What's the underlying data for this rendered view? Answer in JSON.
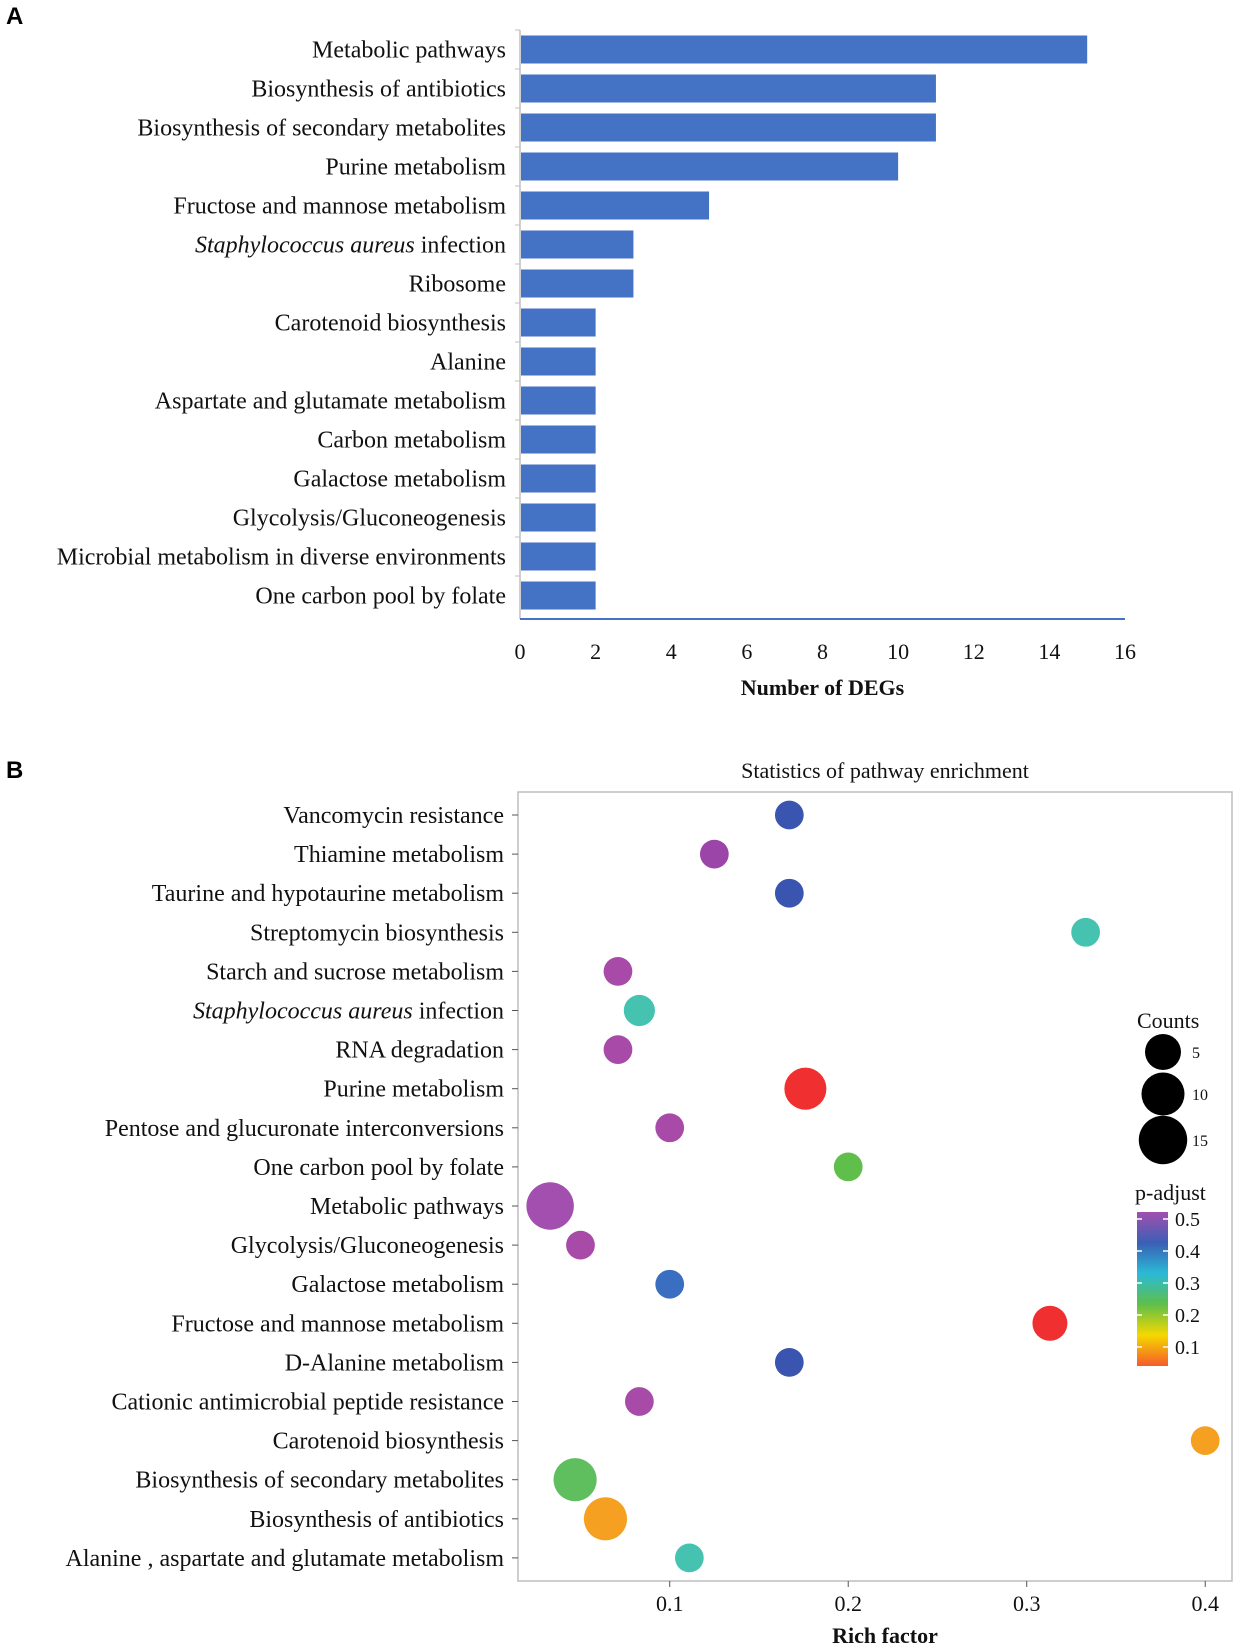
{
  "chart_data": [
    {
      "panel": "A",
      "type": "bar",
      "orientation": "horizontal",
      "title": "",
      "xlabel": "Number of DEGs",
      "ylabel": "",
      "xlim": [
        0,
        16
      ],
      "xticks": [
        0,
        2,
        4,
        6,
        8,
        10,
        12,
        14,
        16
      ],
      "bar_color": "#4472c4",
      "categories": [
        "Metabolic pathways",
        "Biosynthesis of antibiotics",
        "Biosynthesis of secondary metabolites",
        "Purine metabolism",
        "Fructose and mannose metabolism",
        "Staphylococcus aureus infection",
        "Ribosome",
        "Carotenoid biosynthesis",
        "Alanine",
        "Aspartate and glutamate metabolism",
        "Carbon metabolism",
        "Galactose metabolism",
        "Glycolysis/Gluconeogenesis",
        "Microbial metabolism in diverse environments",
        "One carbon pool by folate"
      ],
      "values": [
        15,
        11,
        11,
        10,
        5,
        3,
        3,
        2,
        2,
        2,
        2,
        2,
        2,
        2,
        2
      ]
    },
    {
      "panel": "B",
      "type": "scatter",
      "title": "Statistics of pathway enrichment",
      "xlabel": "Rich factor",
      "ylabel": "",
      "xlim": [
        0.015,
        0.415
      ],
      "xticks": [
        0.1,
        0.2,
        0.3,
        0.4
      ],
      "xtick_labels": [
        "0.1",
        "0.2",
        "0.3",
        "0.4"
      ],
      "size_legend_title": "Counts",
      "size_legend": [
        5,
        10,
        15
      ],
      "color_legend_title": "p-adjust",
      "color_legend_ticks": [
        "0.5",
        "0.4",
        "0.3",
        "0.2",
        "0.1"
      ],
      "color_scale": [
        "#a24fb0",
        "#3a5fb5",
        "#2bbad6",
        "#5fbf4a",
        "#f5d800",
        "#f55b2a"
      ],
      "categories": [
        "Vancomycin resistance",
        "Thiamine metabolism",
        "Taurine and hypotaurine metabolism",
        "Streptomycin biosynthesis",
        "Starch and sucrose metabolism",
        "Staphylococcus aureus infection",
        "RNA degradation",
        "Purine metabolism",
        "Pentose and glucuronate interconversions",
        "One carbon pool by folate",
        "Metabolic pathways",
        "Glycolysis/Gluconeogenesis",
        "Galactose metabolism",
        "Fructose and mannose metabolism",
        "D-Alanine metabolism",
        "Cationic antimicrobial peptide resistance",
        "Carotenoid biosynthesis",
        "Biosynthesis of secondary metabolites",
        "Biosynthesis of antibiotics",
        "Alanine , aspartate and glutamate metabolism"
      ],
      "points": [
        {
          "pathway": "Vancomycin resistance",
          "rich_factor": 0.167,
          "count": 2,
          "p_adjust": 0.42,
          "color": "#3a55b0"
        },
        {
          "pathway": "Thiamine metabolism",
          "rich_factor": 0.125,
          "count": 2,
          "p_adjust": 0.5,
          "color": "#9c45a8"
        },
        {
          "pathway": "Taurine and hypotaurine metabolism",
          "rich_factor": 0.167,
          "count": 2,
          "p_adjust": 0.42,
          "color": "#3a55b0"
        },
        {
          "pathway": "Streptomycin biosynthesis",
          "rich_factor": 0.333,
          "count": 2,
          "p_adjust": 0.27,
          "color": "#46c2b0"
        },
        {
          "pathway": "Starch and sucrose metabolism",
          "rich_factor": 0.071,
          "count": 2,
          "p_adjust": 0.5,
          "color": "#a84aa8"
        },
        {
          "pathway": "Staphylococcus aureus infection",
          "rich_factor": 0.083,
          "count": 3,
          "p_adjust": 0.27,
          "color": "#46c2b0"
        },
        {
          "pathway": "RNA degradation",
          "rich_factor": 0.071,
          "count": 2,
          "p_adjust": 0.5,
          "color": "#a84aa8"
        },
        {
          "pathway": "Purine metabolism",
          "rich_factor": 0.176,
          "count": 10,
          "p_adjust": 0.05,
          "color": "#f03030"
        },
        {
          "pathway": "Pentose and glucuronate interconversions",
          "rich_factor": 0.1,
          "count": 2,
          "p_adjust": 0.5,
          "color": "#a84aa8"
        },
        {
          "pathway": "One carbon pool by folate",
          "rich_factor": 0.2,
          "count": 2,
          "p_adjust": 0.2,
          "color": "#5fbf4a"
        },
        {
          "pathway": "Metabolic pathways",
          "rich_factor": 0.033,
          "count": 15,
          "p_adjust": 0.5,
          "color": "#a24fb0"
        },
        {
          "pathway": "Glycolysis/Gluconeogenesis",
          "rich_factor": 0.05,
          "count": 2,
          "p_adjust": 0.5,
          "color": "#a84aa8"
        },
        {
          "pathway": "Galactose metabolism",
          "rich_factor": 0.1,
          "count": 2,
          "p_adjust": 0.42,
          "color": "#3a6ec0"
        },
        {
          "pathway": "Fructose and mannose metabolism",
          "rich_factor": 0.313,
          "count": 5,
          "p_adjust": 0.05,
          "color": "#f03030"
        },
        {
          "pathway": "D-Alanine metabolism",
          "rich_factor": 0.167,
          "count": 2,
          "p_adjust": 0.42,
          "color": "#3a55b0"
        },
        {
          "pathway": "Cationic antimicrobial peptide resistance",
          "rich_factor": 0.083,
          "count": 2,
          "p_adjust": 0.5,
          "color": "#a84aa8"
        },
        {
          "pathway": "Carotenoid biosynthesis",
          "rich_factor": 0.4,
          "count": 2,
          "p_adjust": 0.1,
          "color": "#f5a020"
        },
        {
          "pathway": "Biosynthesis of secondary metabolites",
          "rich_factor": 0.047,
          "count": 11,
          "p_adjust": 0.2,
          "color": "#5fbf5f"
        },
        {
          "pathway": "Biosynthesis of antibiotics",
          "rich_factor": 0.064,
          "count": 11,
          "p_adjust": 0.1,
          "color": "#f5a020"
        },
        {
          "pathway": "Alanine , aspartate and glutamate metabolism",
          "rich_factor": 0.111,
          "count": 2,
          "p_adjust": 0.27,
          "color": "#46c2b0"
        }
      ]
    }
  ],
  "panels": {
    "a_label": "A",
    "b_label": "B"
  }
}
